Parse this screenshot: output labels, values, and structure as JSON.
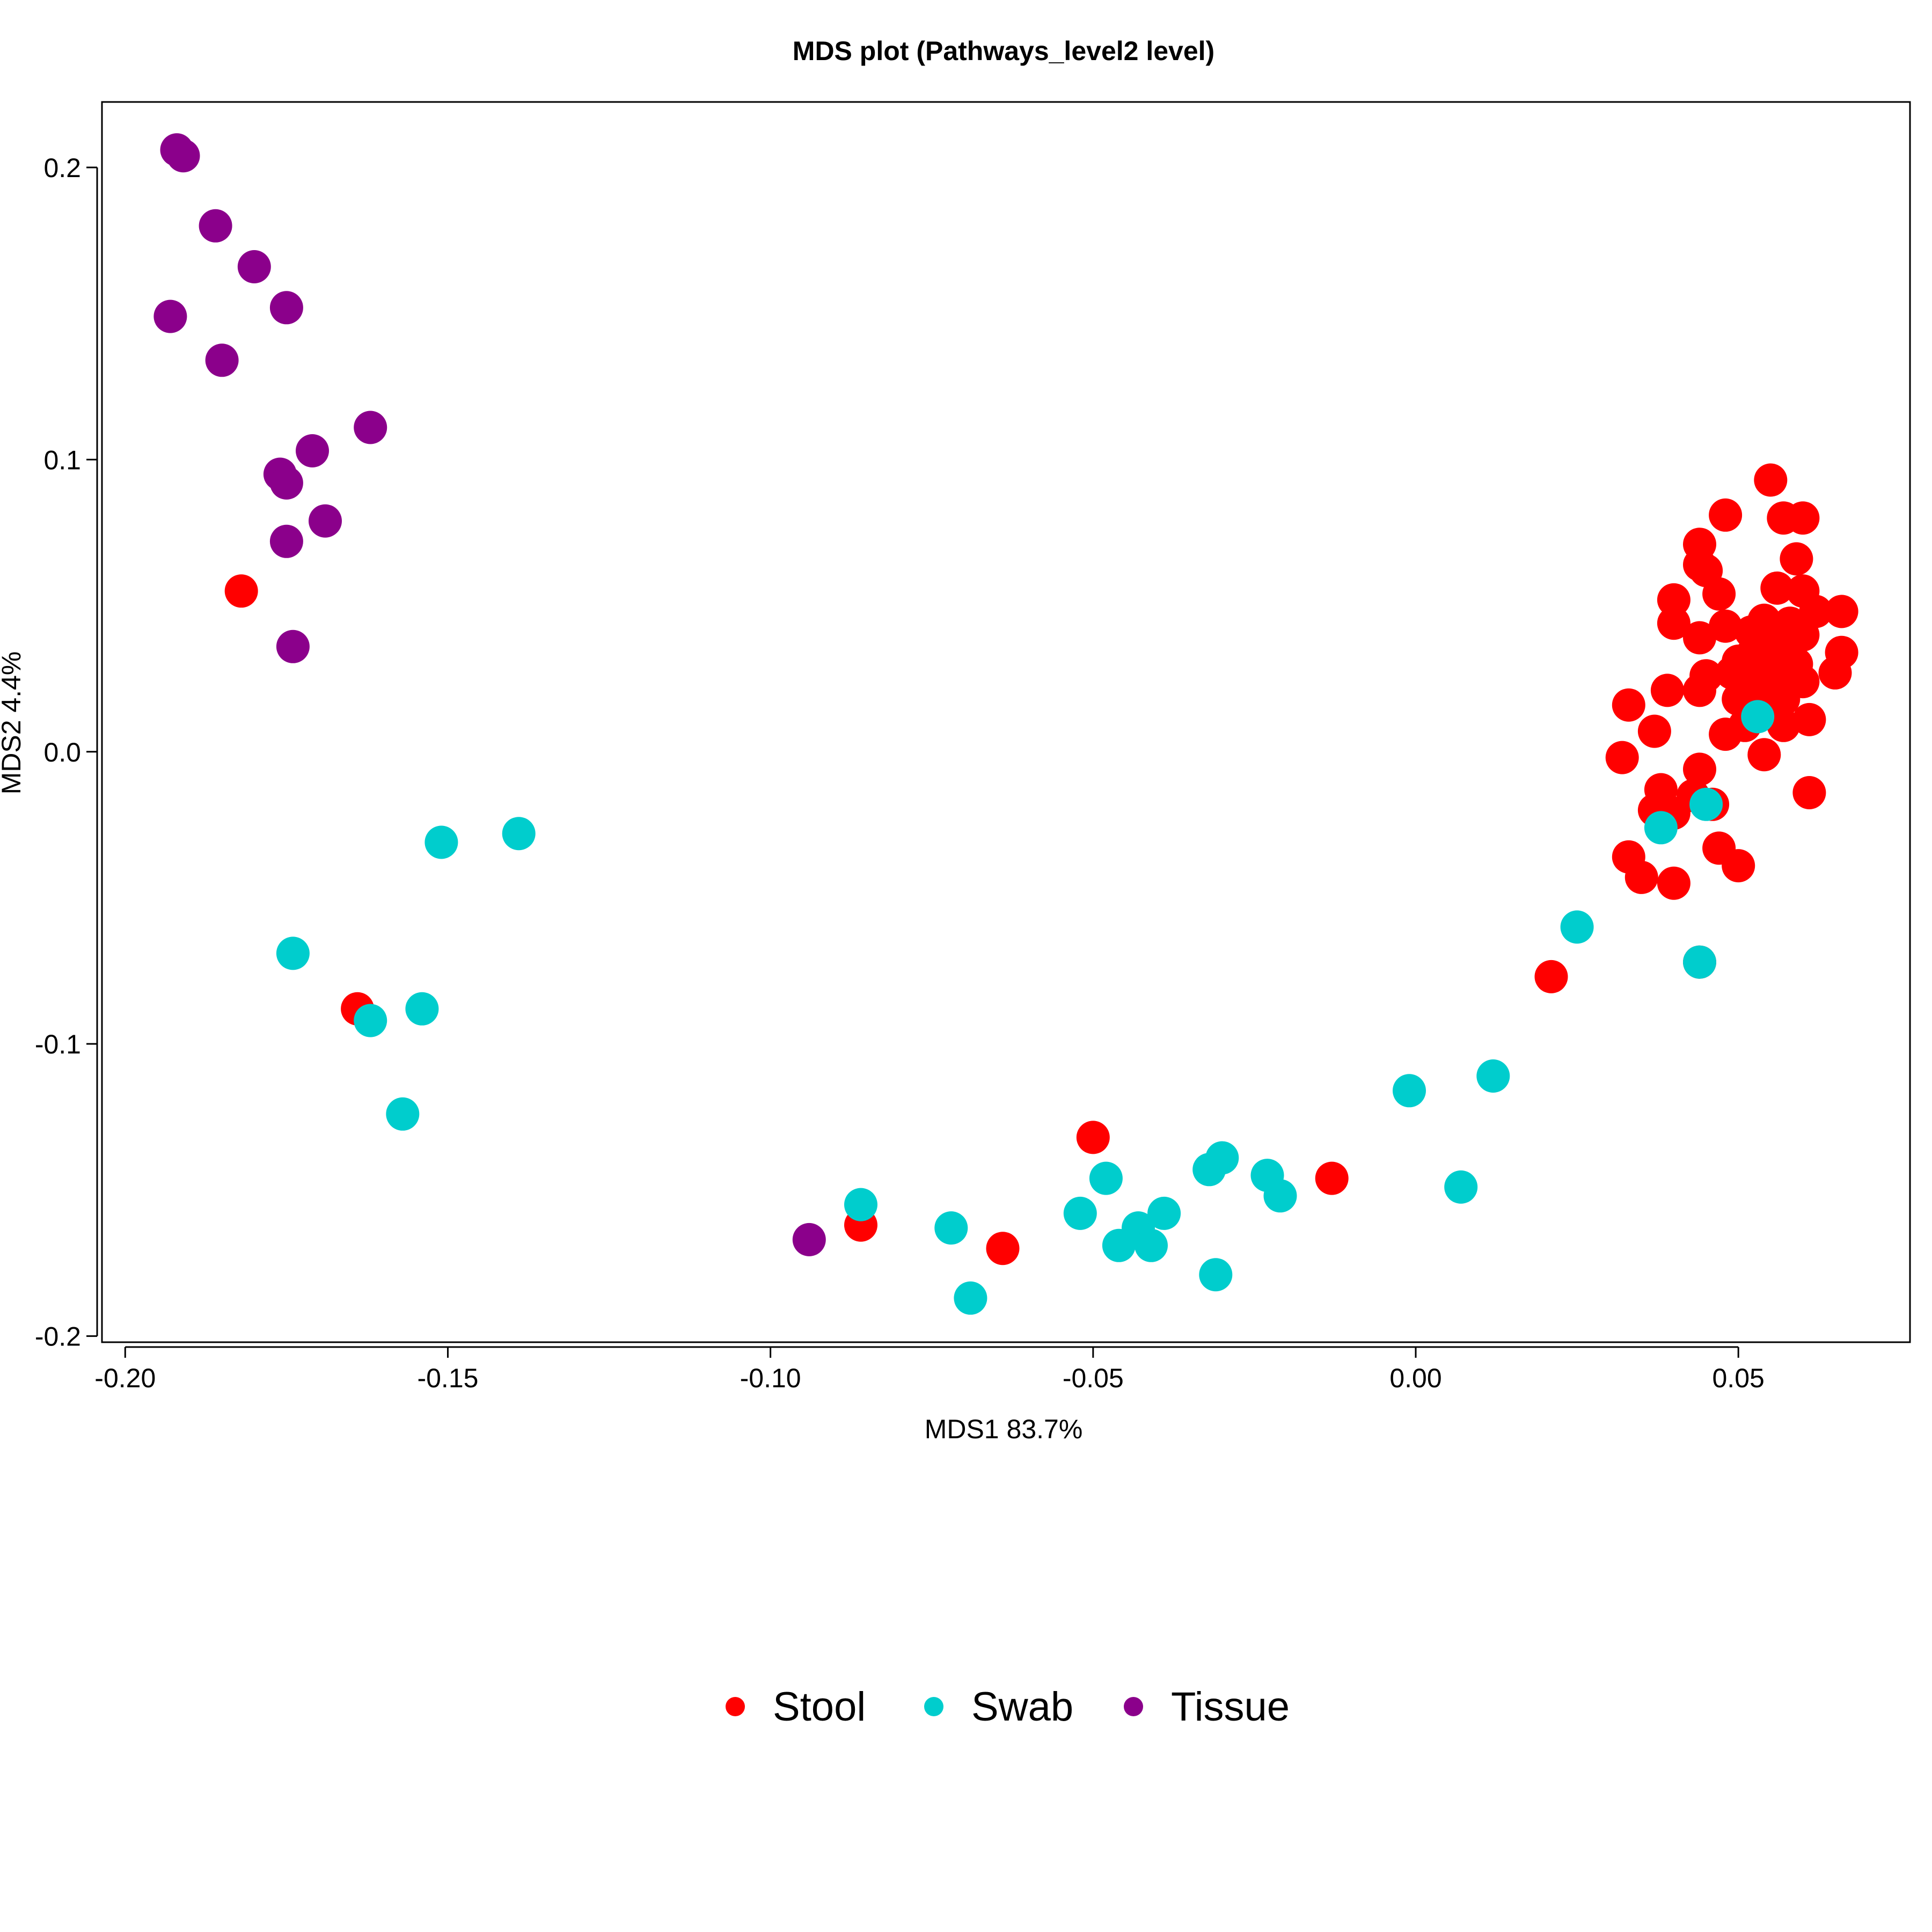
{
  "chart_data": {
    "type": "scatter",
    "title": "MDS plot (Pathways_level2 level)",
    "xlabel": "MDS1 83.7%",
    "ylabel": "MDS2 4.4%",
    "xlim": [
      -0.2036,
      0.0766
    ],
    "ylim": [
      -0.2021,
      0.2224
    ],
    "xticks": [
      -0.2,
      -0.15,
      -0.1,
      -0.05,
      0.0,
      0.05
    ],
    "xtick_labels": [
      "-0.20",
      "-0.15",
      "-0.10",
      "-0.05",
      "0.00",
      "0.05"
    ],
    "yticks": [
      -0.2,
      -0.1,
      0.0,
      0.1,
      0.2
    ],
    "ytick_labels": [
      "-0.2",
      "-0.1",
      "0.0",
      "0.1",
      "0.2"
    ],
    "legend_position": "bottom",
    "grid": false,
    "series": [
      {
        "name": "Stool",
        "color": "#FF0000",
        "points": [
          [
            -0.182,
            0.055
          ],
          [
            -0.164,
            -0.088
          ],
          [
            -0.05,
            -0.132
          ],
          [
            -0.086,
            -0.162
          ],
          [
            -0.064,
            -0.17
          ],
          [
            -0.013,
            -0.146
          ],
          [
            0.021,
            -0.077
          ],
          [
            0.044,
            -0.072
          ],
          [
            0.035,
            -0.043
          ],
          [
            0.033,
            -0.036
          ],
          [
            0.04,
            -0.045
          ],
          [
            0.047,
            -0.033
          ],
          [
            0.05,
            -0.039
          ],
          [
            0.037,
            -0.02
          ],
          [
            0.04,
            -0.021
          ],
          [
            0.043,
            -0.015
          ],
          [
            0.046,
            -0.018
          ],
          [
            0.038,
            -0.013
          ],
          [
            0.032,
            -0.002
          ],
          [
            0.044,
            -0.006
          ],
          [
            0.037,
            0.007
          ],
          [
            0.033,
            0.016
          ],
          [
            0.039,
            0.021
          ],
          [
            0.044,
            0.021
          ],
          [
            0.045,
            0.026
          ],
          [
            0.048,
            0.006
          ],
          [
            0.051,
            0.009
          ],
          [
            0.054,
            -0.001
          ],
          [
            0.057,
            0.009
          ],
          [
            0.061,
            0.011
          ],
          [
            0.06,
            0.024
          ],
          [
            0.065,
            0.027
          ],
          [
            0.066,
            0.034
          ],
          [
            0.06,
            0.04
          ],
          [
            0.062,
            0.048
          ],
          [
            0.066,
            0.048
          ],
          [
            0.058,
            0.044
          ],
          [
            0.06,
            0.055
          ],
          [
            0.056,
            0.056
          ],
          [
            0.059,
            0.066
          ],
          [
            0.055,
            0.093
          ],
          [
            0.057,
            0.08
          ],
          [
            0.06,
            0.08
          ],
          [
            0.048,
            0.081
          ],
          [
            0.044,
            0.071
          ],
          [
            0.044,
            0.064
          ],
          [
            0.045,
            0.062
          ],
          [
            0.047,
            0.054
          ],
          [
            0.04,
            0.052
          ],
          [
            0.04,
            0.044
          ],
          [
            0.044,
            0.039
          ],
          [
            0.048,
            0.043
          ],
          [
            0.05,
            0.031
          ],
          [
            0.049,
            0.027
          ],
          [
            0.052,
            0.041
          ],
          [
            0.054,
            0.045
          ],
          [
            0.053,
            0.037
          ],
          [
            0.055,
            0.031
          ],
          [
            0.056,
            0.035
          ],
          [
            0.057,
            0.038
          ],
          [
            0.058,
            0.028
          ],
          [
            0.051,
            0.024
          ],
          [
            0.05,
            0.018
          ],
          [
            0.053,
            0.02
          ],
          [
            0.055,
            0.023
          ],
          [
            0.057,
            0.018
          ],
          [
            0.059,
            0.03
          ],
          [
            0.052,
            0.033
          ],
          [
            0.054,
            0.028
          ],
          [
            0.061,
            -0.014
          ]
        ]
      },
      {
        "name": "Swab",
        "color": "#00CDCD",
        "points": [
          [
            -0.139,
            -0.028
          ],
          [
            -0.151,
            -0.031
          ],
          [
            -0.174,
            -0.069
          ],
          [
            -0.154,
            -0.088
          ],
          [
            -0.162,
            -0.092
          ],
          [
            -0.157,
            -0.124
          ],
          [
            -0.086,
            -0.155
          ],
          [
            -0.072,
            -0.163
          ],
          [
            -0.069,
            -0.187
          ],
          [
            -0.052,
            -0.158
          ],
          [
            -0.048,
            -0.146
          ],
          [
            -0.046,
            -0.169
          ],
          [
            -0.043,
            -0.163
          ],
          [
            -0.041,
            -0.169
          ],
          [
            -0.039,
            -0.158
          ],
          [
            -0.032,
            -0.143
          ],
          [
            -0.03,
            -0.139
          ],
          [
            -0.031,
            -0.179
          ],
          [
            -0.023,
            -0.145
          ],
          [
            -0.021,
            -0.152
          ],
          [
            -0.001,
            -0.116
          ],
          [
            0.007,
            -0.149
          ],
          [
            0.012,
            -0.111
          ],
          [
            0.025,
            -0.06
          ],
          [
            0.038,
            -0.026
          ],
          [
            0.044,
            -0.072
          ],
          [
            0.045,
            -0.018
          ],
          [
            0.053,
            0.012
          ]
        ]
      },
      {
        "name": "Tissue",
        "color": "#8B008B",
        "points": [
          [
            -0.192,
            0.206
          ],
          [
            -0.191,
            0.204
          ],
          [
            -0.186,
            0.18
          ],
          [
            -0.18,
            0.166
          ],
          [
            -0.175,
            0.152
          ],
          [
            -0.193,
            0.149
          ],
          [
            -0.185,
            0.134
          ],
          [
            -0.162,
            0.111
          ],
          [
            -0.171,
            0.103
          ],
          [
            -0.176,
            0.095
          ],
          [
            -0.175,
            0.092
          ],
          [
            -0.169,
            0.079
          ],
          [
            -0.175,
            0.072
          ],
          [
            -0.174,
            0.036
          ],
          [
            -0.094,
            -0.167
          ]
        ]
      }
    ]
  }
}
